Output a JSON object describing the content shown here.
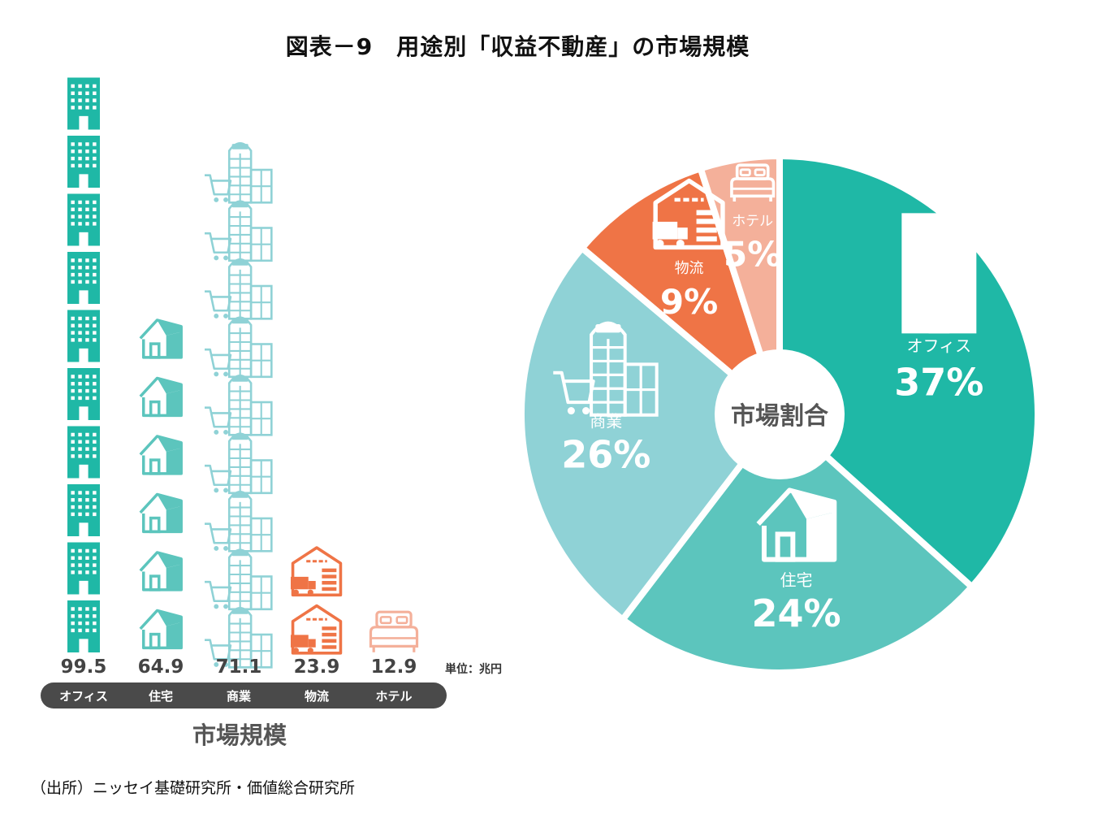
{
  "title": "図表－9　用途別「収益不動産」の市場規模",
  "source": "（出所）ニッセイ基礎研究所・価値総合研究所",
  "colors": {
    "office": "#1fb8a6",
    "housing": "#5cc5bd",
    "commercial": "#8fd2d6",
    "logistics": "#ef7446",
    "hotel": "#f4b09a",
    "category_bar": "#4a4a4a",
    "value_text": "#444444",
    "divider": "#ffffff"
  },
  "chart_data": [
    {
      "type": "bar",
      "style": "pictograph",
      "title": "市場規模",
      "unit_label": "単位：兆円",
      "categories": [
        "オフィス",
        "住宅",
        "商業",
        "物流",
        "ホテル"
      ],
      "values": [
        99.5,
        64.9,
        71.1,
        23.9,
        12.9
      ],
      "value_labels": [
        "99.5",
        "64.9",
        "71.1",
        "23.9",
        "12.9"
      ],
      "icon_counts": [
        10,
        6,
        9,
        2,
        1
      ],
      "icons": [
        "office-building-icon",
        "house-icon",
        "shopping-mall-icon",
        "warehouse-truck-icon",
        "bed-icon"
      ]
    },
    {
      "type": "pie",
      "center_label": "市場割合",
      "labels": [
        "オフィス",
        "住宅",
        "商業",
        "物流",
        "ホテル"
      ],
      "values": [
        37,
        24,
        26,
        9,
        5
      ],
      "value_labels": [
        "37%",
        "24%",
        "26%",
        "9%",
        "5%"
      ],
      "icons": [
        "office-building-icon",
        "house-icon",
        "shopping-mall-icon",
        "warehouse-truck-icon",
        "bed-icon"
      ]
    }
  ]
}
